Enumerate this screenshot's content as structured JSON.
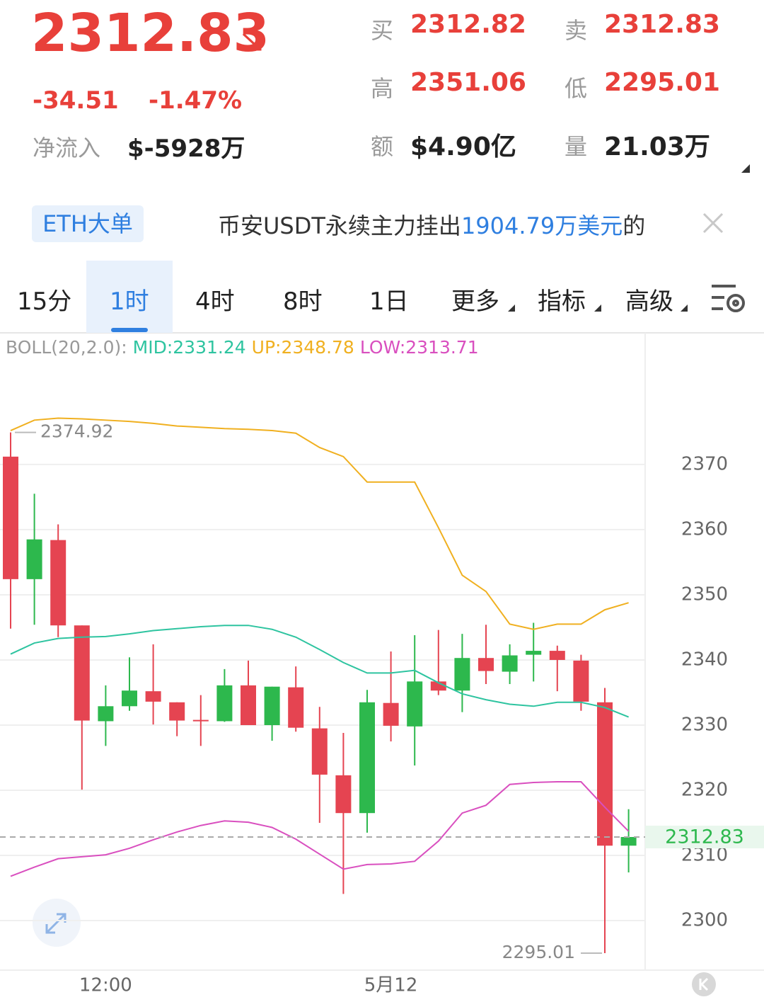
{
  "header": {
    "price": "2312.83",
    "change": "-34.51",
    "change_pct": "-1.47%",
    "net_inflow_label": "净流入",
    "net_inflow": "$-5928万",
    "stats": [
      {
        "label": "买",
        "value": "2312.82"
      },
      {
        "label": "卖",
        "value": "2312.83"
      },
      {
        "label": "高",
        "value": "2351.06"
      },
      {
        "label": "低",
        "value": "2295.01"
      },
      {
        "label": "额",
        "value": "$4.90亿"
      },
      {
        "label": "量",
        "value": "21.03万"
      }
    ]
  },
  "news": {
    "tag": "ETH大单",
    "parts": [
      "币安USDT永续主力挂出",
      "1904.79万美元",
      "的"
    ]
  },
  "tabs": [
    "15分",
    "1时",
    "4时",
    "8时",
    "1日",
    "更多",
    "指标",
    "高级"
  ],
  "chart_data": {
    "type": "candlestick",
    "indicator": "BOLL(20,2.0):",
    "categories": [
      null,
      null,
      null,
      null,
      "12:00",
      null,
      null,
      null,
      null,
      null,
      null,
      null,
      null,
      null,
      null,
      null,
      "5月12",
      null,
      null,
      null,
      null,
      null,
      null,
      null,
      null,
      null,
      null
    ],
    "open": [
      2371.2,
      2352.4,
      2358.4,
      2345.3,
      2330.6,
      2332.9,
      2335.2,
      2333.5,
      2330.8,
      2330.6,
      2336.1,
      2330.0,
      2335.8,
      2329.5,
      2322.3,
      2316.5,
      2333.4,
      2329.8,
      2336.7,
      2335.3,
      2340.3,
      2338.2,
      2340.8,
      2341.4,
      2339.9,
      2333.5,
      2311.5
    ],
    "high": [
      2374.92,
      2365.5,
      2360.8,
      2345.3,
      2336.1,
      2340.4,
      2342.4,
      2333.5,
      2334.6,
      2338.6,
      2339.9,
      2335.9,
      2339.0,
      2332.8,
      2328.8,
      2335.4,
      2341.3,
      2343.8,
      2344.6,
      2344.0,
      2345.4,
      2342.4,
      2345.7,
      2342.2,
      2340.8,
      2335.7,
      2317.1
    ],
    "low": [
      2344.8,
      2345.4,
      2343.5,
      2320.1,
      2326.8,
      2332.2,
      2330.1,
      2328.3,
      2326.8,
      2330.5,
      2330.0,
      2327.6,
      2329.0,
      2315.0,
      2304.1,
      2313.5,
      2327.5,
      2323.8,
      2334.6,
      2332.0,
      2336.3,
      2336.3,
      2336.7,
      2335.2,
      2332.2,
      2295.01,
      2307.4
    ],
    "close": [
      2352.4,
      2358.5,
      2345.3,
      2330.7,
      2332.9,
      2335.3,
      2333.6,
      2330.7,
      2330.7,
      2336.1,
      2330.0,
      2335.9,
      2329.6,
      2322.4,
      2316.5,
      2333.5,
      2329.9,
      2336.7,
      2335.3,
      2340.3,
      2338.3,
      2340.7,
      2341.4,
      2340.0,
      2333.6,
      2311.5,
      2312.83
    ],
    "up_color": "#2db84d",
    "down_color": "#e54451",
    "series": [
      {
        "name": "MID:2331.24",
        "color": "#2ec4a0",
        "values": [
          2340.9,
          2342.6,
          2343.3,
          2343.5,
          2343.6,
          2344.0,
          2344.5,
          2344.8,
          2345.1,
          2345.3,
          2345.3,
          2344.7,
          2343.5,
          2341.6,
          2339.6,
          2338.0,
          2338.0,
          2338.4,
          2336.5,
          2334.8,
          2333.9,
          2333.2,
          2332.9,
          2333.5,
          2333.5,
          2332.7,
          2331.24
        ]
      },
      {
        "name": "UP:2348.78",
        "color": "#f0b020",
        "values": [
          2375.2,
          2376.8,
          2377.1,
          2377.0,
          2376.8,
          2376.6,
          2376.3,
          2375.9,
          2375.7,
          2375.5,
          2375.4,
          2375.2,
          2374.8,
          2372.6,
          2371.2,
          2367.3,
          2367.3,
          2367.3,
          2360.3,
          2353.0,
          2350.5,
          2345.5,
          2344.7,
          2345.5,
          2345.5,
          2347.7,
          2348.78
        ]
      },
      {
        "name": "LOW:2313.71",
        "color": "#d94fbf",
        "values": [
          2306.8,
          2308.2,
          2309.5,
          2309.8,
          2310.1,
          2311.1,
          2312.4,
          2313.6,
          2314.6,
          2315.3,
          2315.1,
          2314.3,
          2312.5,
          2310.2,
          2307.9,
          2308.6,
          2308.7,
          2309.1,
          2312.2,
          2316.5,
          2317.7,
          2320.9,
          2321.2,
          2321.3,
          2321.3,
          2317.4,
          2313.71
        ]
      }
    ],
    "max_label": "2374.92",
    "min_label": "2295.01",
    "last_label": "2312.83",
    "ylim": [
      2292.4,
      2390.2
    ],
    "yticks": [
      2300,
      2310,
      2320,
      2330,
      2340,
      2350,
      2360,
      2370
    ],
    "grid": true
  }
}
